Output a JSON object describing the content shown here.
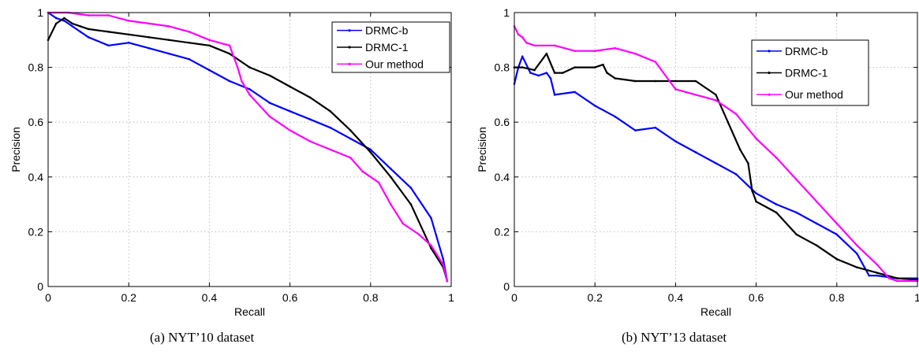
{
  "captions": [
    "(a)  NYT’10 dataset",
    "(b)  NYT’13 dataset"
  ],
  "chart_data": [
    {
      "type": "line",
      "xlabel": "Recall",
      "ylabel": "Precision",
      "xlim": [
        0,
        1
      ],
      "ylim": [
        0,
        1
      ],
      "xticks": [
        "0",
        "0.2",
        "0.4",
        "0.6",
        "0.8",
        "1"
      ],
      "yticks": [
        "0",
        "0.2",
        "0.4",
        "0.6",
        "0.8",
        "1"
      ],
      "grid": true,
      "legend_position": "top-right",
      "series": [
        {
          "name": "DRMC-b",
          "color": "#0000ff",
          "x": [
            0.0,
            0.02,
            0.04,
            0.06,
            0.08,
            0.1,
            0.15,
            0.2,
            0.25,
            0.3,
            0.35,
            0.4,
            0.45,
            0.5,
            0.55,
            0.6,
            0.65,
            0.7,
            0.75,
            0.8,
            0.85,
            0.9,
            0.95,
            0.98,
            0.99
          ],
          "y": [
            1.0,
            0.98,
            0.97,
            0.95,
            0.93,
            0.91,
            0.88,
            0.89,
            0.87,
            0.85,
            0.83,
            0.79,
            0.75,
            0.72,
            0.67,
            0.64,
            0.61,
            0.58,
            0.54,
            0.5,
            0.43,
            0.36,
            0.25,
            0.1,
            0.02
          ]
        },
        {
          "name": "DRMC-1",
          "color": "#000000",
          "x": [
            0.0,
            0.02,
            0.04,
            0.06,
            0.08,
            0.1,
            0.15,
            0.2,
            0.25,
            0.3,
            0.35,
            0.4,
            0.45,
            0.5,
            0.55,
            0.6,
            0.65,
            0.7,
            0.75,
            0.8,
            0.85,
            0.9,
            0.95,
            0.98,
            0.99
          ],
          "y": [
            0.9,
            0.96,
            0.98,
            0.96,
            0.95,
            0.94,
            0.93,
            0.92,
            0.91,
            0.9,
            0.89,
            0.88,
            0.85,
            0.8,
            0.77,
            0.73,
            0.69,
            0.64,
            0.57,
            0.49,
            0.4,
            0.3,
            0.14,
            0.07,
            0.02
          ]
        },
        {
          "name": "Our method",
          "color": "#ff00ff",
          "x": [
            0.0,
            0.05,
            0.1,
            0.15,
            0.2,
            0.25,
            0.3,
            0.35,
            0.4,
            0.45,
            0.47,
            0.48,
            0.5,
            0.55,
            0.6,
            0.65,
            0.7,
            0.75,
            0.78,
            0.82,
            0.85,
            0.88,
            0.92,
            0.95,
            0.98,
            0.99
          ],
          "y": [
            1.0,
            1.0,
            0.99,
            0.99,
            0.97,
            0.96,
            0.95,
            0.93,
            0.9,
            0.88,
            0.8,
            0.75,
            0.7,
            0.62,
            0.57,
            0.53,
            0.5,
            0.47,
            0.42,
            0.38,
            0.3,
            0.23,
            0.19,
            0.15,
            0.08,
            0.02
          ]
        }
      ]
    },
    {
      "type": "line",
      "xlabel": "Recall",
      "ylabel": "Precision",
      "xlim": [
        0,
        1
      ],
      "ylim": [
        0,
        1
      ],
      "xticks": [
        "0",
        "0.2",
        "0.4",
        "0.6",
        "0.8",
        "1"
      ],
      "yticks": [
        "0",
        "0.2",
        "0.4",
        "0.6",
        "0.8",
        "1"
      ],
      "grid": true,
      "legend_position": "top-right",
      "series": [
        {
          "name": "DRMC-b",
          "color": "#0000ff",
          "x": [
            0.0,
            0.01,
            0.02,
            0.04,
            0.06,
            0.08,
            0.09,
            0.1,
            0.15,
            0.2,
            0.25,
            0.3,
            0.35,
            0.4,
            0.45,
            0.5,
            0.55,
            0.6,
            0.65,
            0.7,
            0.75,
            0.8,
            0.85,
            0.88,
            0.9,
            0.95,
            1.0
          ],
          "y": [
            0.74,
            0.8,
            0.84,
            0.78,
            0.77,
            0.78,
            0.76,
            0.7,
            0.71,
            0.66,
            0.62,
            0.57,
            0.58,
            0.53,
            0.49,
            0.45,
            0.41,
            0.34,
            0.3,
            0.27,
            0.23,
            0.19,
            0.12,
            0.04,
            0.04,
            0.03,
            0.03
          ]
        },
        {
          "name": "DRMC-1",
          "color": "#000000",
          "x": [
            0.0,
            0.02,
            0.05,
            0.08,
            0.1,
            0.12,
            0.15,
            0.2,
            0.22,
            0.23,
            0.25,
            0.3,
            0.35,
            0.4,
            0.45,
            0.5,
            0.53,
            0.56,
            0.58,
            0.59,
            0.6,
            0.65,
            0.7,
            0.75,
            0.8,
            0.85,
            0.9,
            0.95,
            1.0
          ],
          "y": [
            0.8,
            0.8,
            0.79,
            0.85,
            0.78,
            0.78,
            0.8,
            0.8,
            0.81,
            0.78,
            0.76,
            0.75,
            0.75,
            0.75,
            0.75,
            0.7,
            0.6,
            0.5,
            0.45,
            0.35,
            0.31,
            0.27,
            0.19,
            0.15,
            0.1,
            0.07,
            0.05,
            0.03,
            0.025
          ]
        },
        {
          "name": "Our method",
          "color": "#ff00ff",
          "x": [
            0.0,
            0.01,
            0.02,
            0.03,
            0.05,
            0.1,
            0.15,
            0.2,
            0.25,
            0.3,
            0.35,
            0.4,
            0.45,
            0.5,
            0.55,
            0.6,
            0.65,
            0.7,
            0.75,
            0.8,
            0.85,
            0.9,
            0.93,
            0.95,
            1.0
          ],
          "y": [
            0.95,
            0.92,
            0.91,
            0.89,
            0.88,
            0.88,
            0.86,
            0.86,
            0.87,
            0.85,
            0.82,
            0.72,
            0.7,
            0.68,
            0.63,
            0.54,
            0.47,
            0.39,
            0.31,
            0.23,
            0.15,
            0.08,
            0.03,
            0.02,
            0.02
          ]
        }
      ]
    }
  ]
}
